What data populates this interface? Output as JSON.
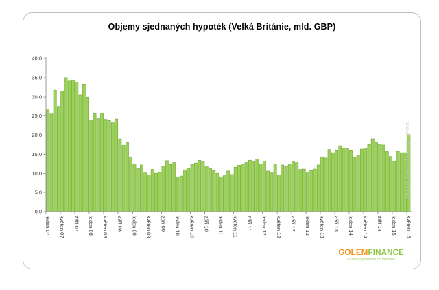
{
  "title": "Objemy sjednaných hypoték (Velká Británie, mld. GBP)",
  "source_note": "Zdroj dat: Council of Mortgage Lenders",
  "logo": {
    "part_orange": "GOLEM",
    "part_green": "FINANCE",
    "tagline": "Služby hypotečního makléře",
    "orange_color": "#f6921e",
    "green_color": "#8cc63e"
  },
  "chart_data": {
    "type": "bar",
    "title": "Objemy sjednaných hypoték (Velká Británie, mld. GBP)",
    "unit": "mld. GBP",
    "x_start": "leden 07",
    "x_end": "květen 15",
    "n_bars": 101,
    "ylim": [
      0,
      40
    ],
    "ytick_step": 5,
    "ytick_labels": [
      "0,0",
      "5,0",
      "10,0",
      "15,0",
      "20,0",
      "25,0",
      "30,0",
      "35,0",
      "40,0"
    ],
    "xtick_every": 4,
    "xtick_labels": [
      "leden 07",
      "květen 07",
      "září 07",
      "leden 08",
      "květen 08",
      "září 08",
      "leden 09",
      "květen 09",
      "září 09",
      "leden 10",
      "květen 10",
      "září 10",
      "leden 11",
      "květen 11",
      "září 11",
      "leden 12",
      "květen 12",
      "září 12",
      "leden 13",
      "květen 13",
      "září 13",
      "leden 14",
      "květen 14",
      "září 14",
      "leden 15",
      "květen 15"
    ],
    "values": [
      26.6,
      25.5,
      31.7,
      27.5,
      31.5,
      35.0,
      34.1,
      34.3,
      33.6,
      30.5,
      33.3,
      29.9,
      23.9,
      25.6,
      24.3,
      25.7,
      24.1,
      23.8,
      23.2,
      24.2,
      19.0,
      17.3,
      18.1,
      14.3,
      12.5,
      11.3,
      12.2,
      10.1,
      9.6,
      11.0,
      10.0,
      10.2,
      11.9,
      13.3,
      12.3,
      12.8,
      9.0,
      9.3,
      10.9,
      11.3,
      12.3,
      12.7,
      13.4,
      13.0,
      11.9,
      11.3,
      10.7,
      10.0,
      9.1,
      9.4,
      10.6,
      9.7,
      11.6,
      12.1,
      12.4,
      12.8,
      13.4,
      13.0,
      13.7,
      12.5,
      13.2,
      10.6,
      10.1,
      12.4,
      9.6,
      12.2,
      11.8,
      12.5,
      13.0,
      12.8,
      11.0,
      11.1,
      10.1,
      10.7,
      11.1,
      12.2,
      14.3,
      14.0,
      16.2,
      15.4,
      15.9,
      17.2,
      16.6,
      16.4,
      15.9,
      14.3,
      14.7,
      16.3,
      16.6,
      17.5,
      19.0,
      18.1,
      17.6,
      17.4,
      15.7,
      14.4,
      13.2,
      15.7,
      15.4,
      15.4,
      20.1
    ],
    "bar_color": "#9bd25a",
    "bar_border": "#7dae3f",
    "axis_color": "#9b9b9b",
    "label_color": "#3a3a3a",
    "grid": false,
    "legend": false
  }
}
